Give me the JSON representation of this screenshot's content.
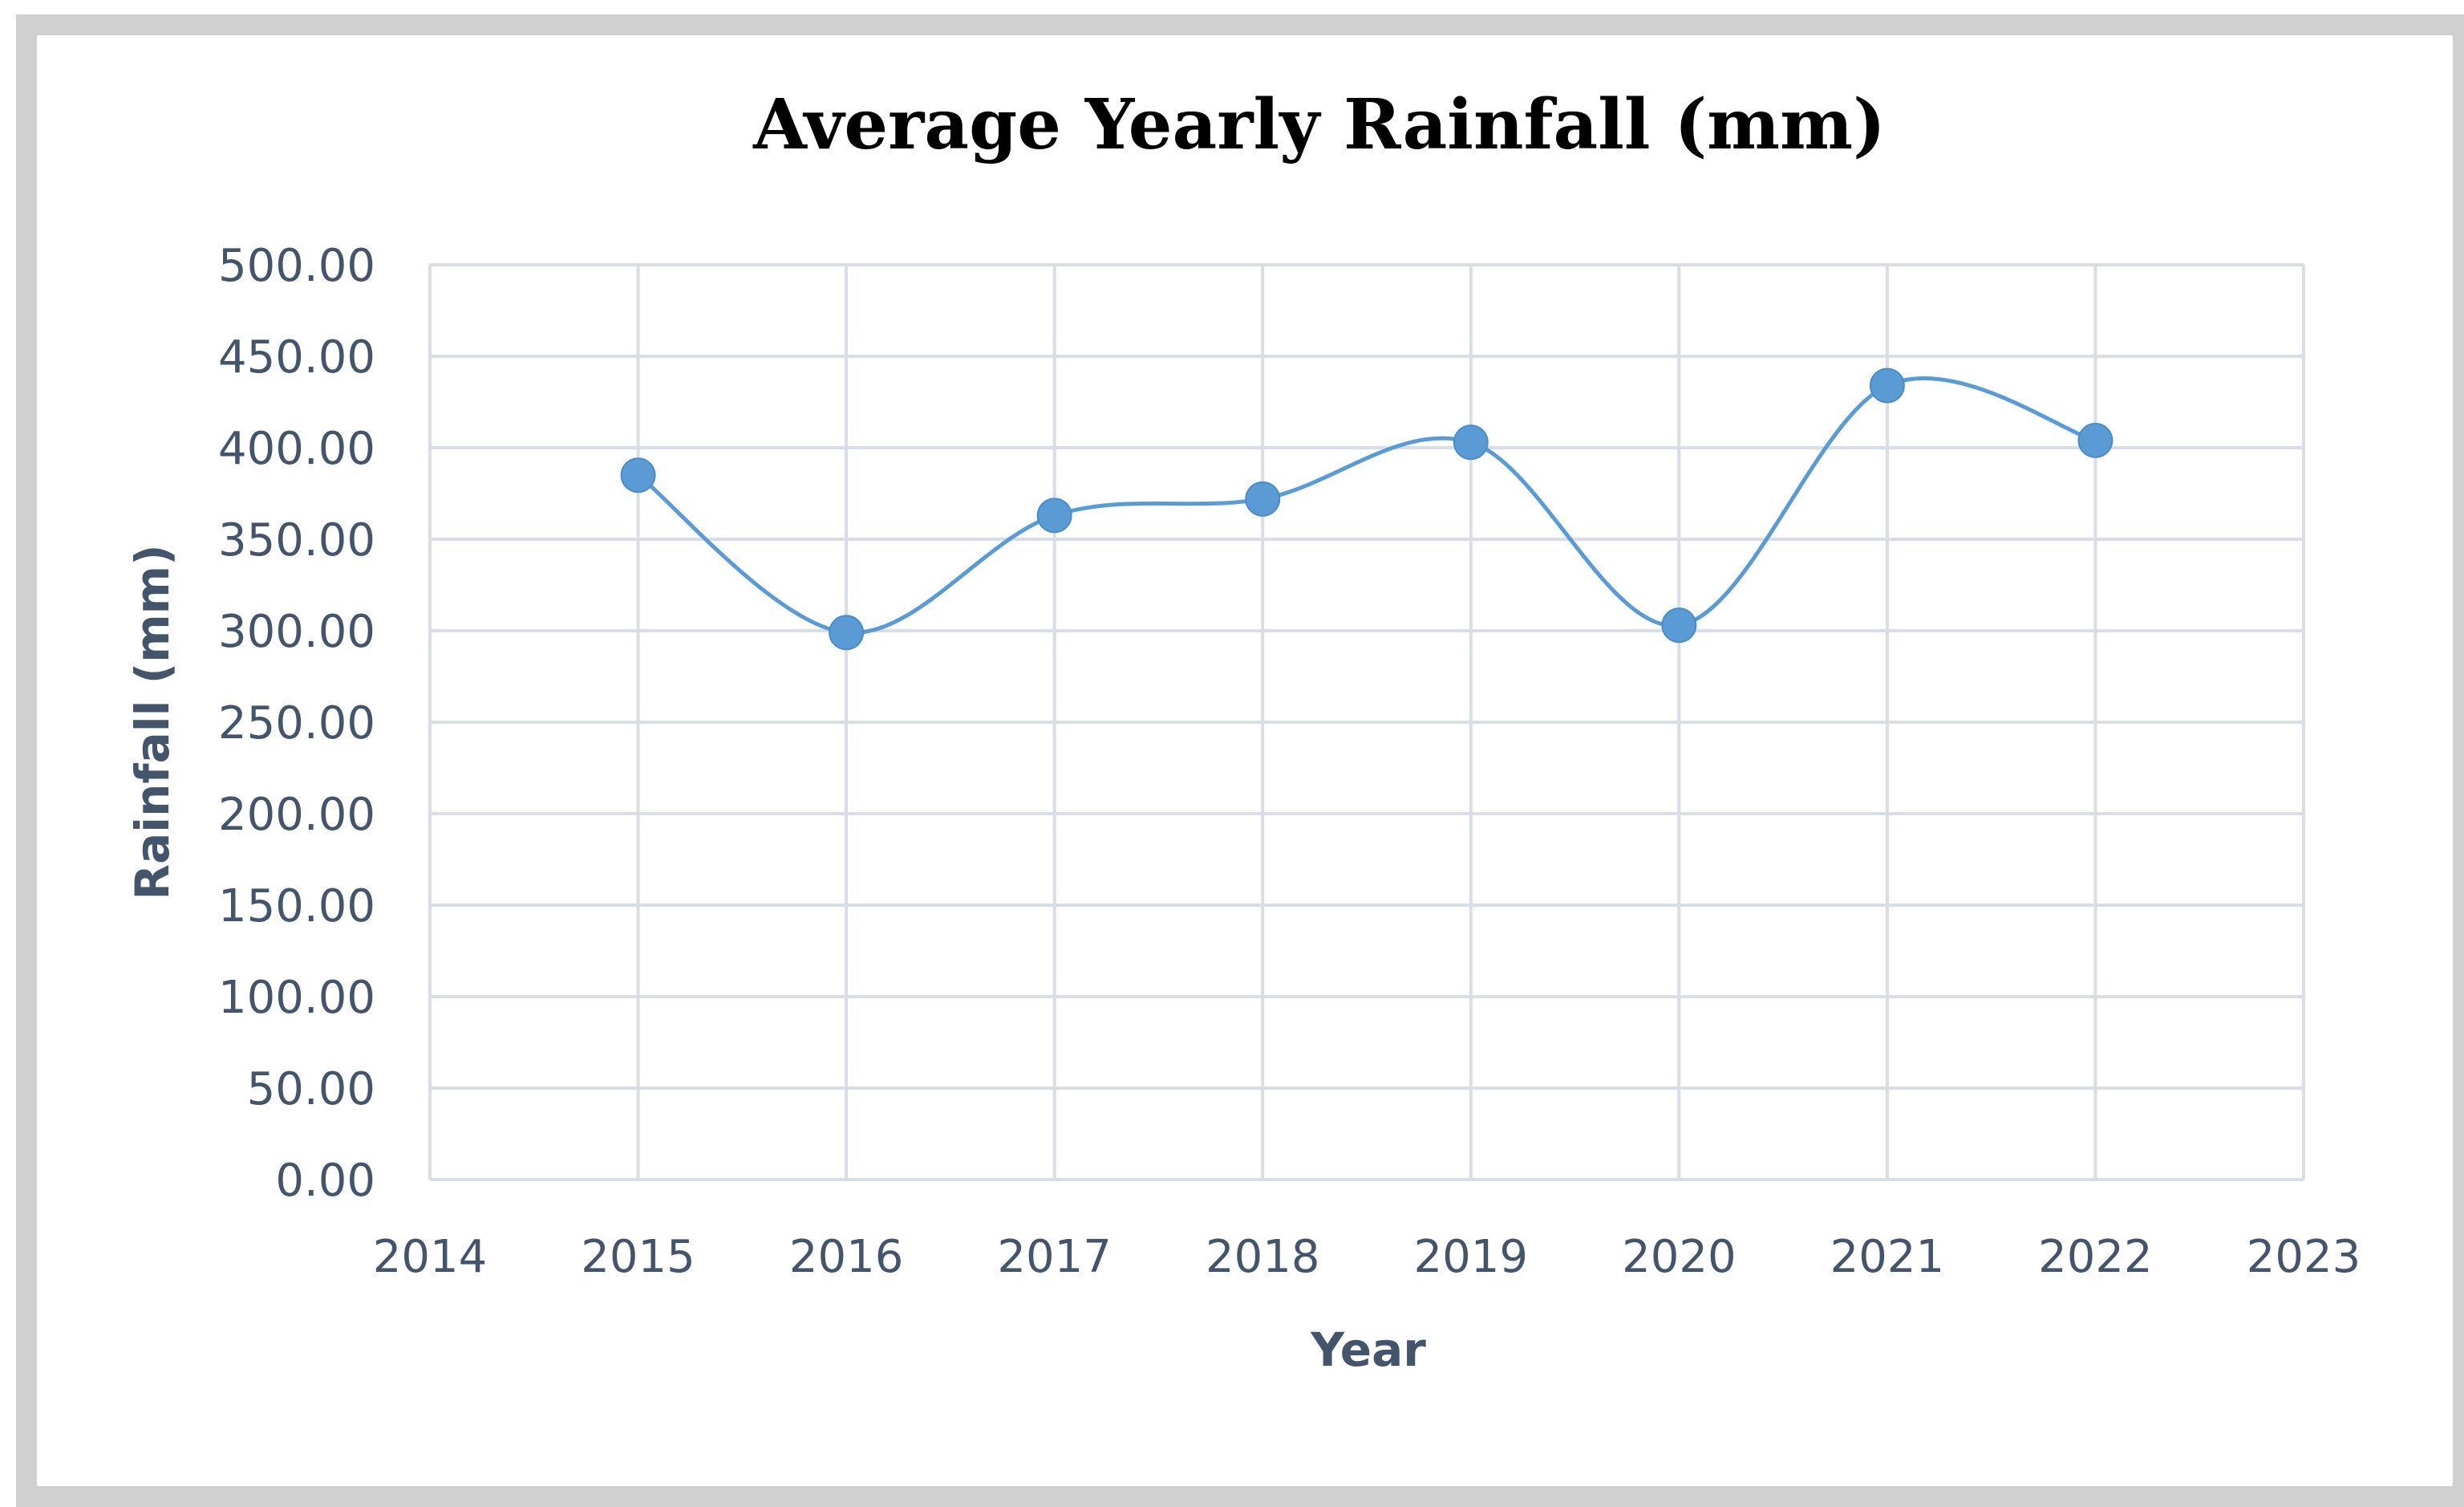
{
  "chart_data": {
    "type": "line",
    "title": "Average Yearly Rainfall (mm)",
    "xlabel": "Year",
    "ylabel": "Rainfall (mm)",
    "xlim": [
      2014,
      2023
    ],
    "ylim": [
      0,
      500
    ],
    "x_ticks": [
      "2014",
      "2015",
      "2016",
      "2017",
      "2018",
      "2019",
      "2020",
      "2021",
      "2022",
      "2023"
    ],
    "y_ticks": [
      "0.00",
      "50.00",
      "100.00",
      "150.00",
      "200.00",
      "250.00",
      "300.00",
      "350.00",
      "400.00",
      "450.00",
      "500.00"
    ],
    "grid": true,
    "smooth": true,
    "series": [
      {
        "name": "Rainfall",
        "color": "#5b9bd5",
        "x": [
          2015,
          2016,
          2017,
          2018,
          2019,
          2020,
          2021,
          2022
        ],
        "values": [
          385,
          299,
          363,
          372,
          403,
          303,
          434,
          404
        ]
      }
    ]
  }
}
